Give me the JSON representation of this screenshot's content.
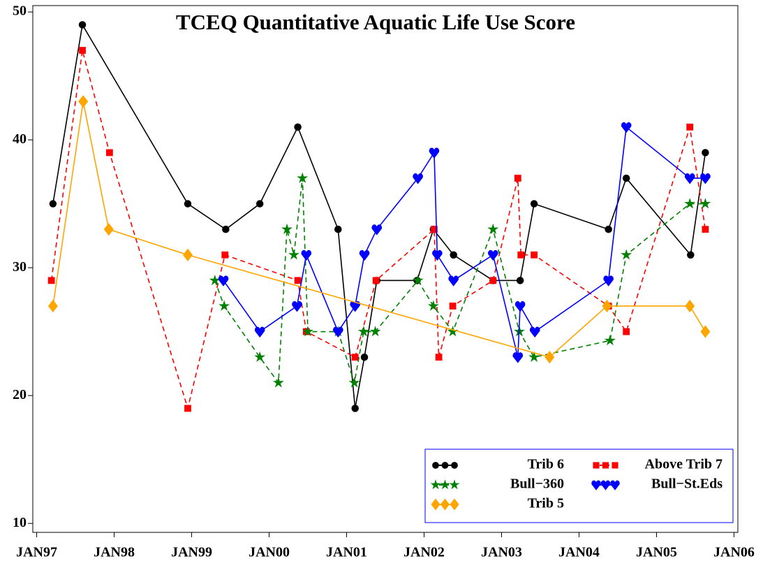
{
  "chart_data": {
    "type": "line",
    "title": "TCEQ Quantitative Aquatic Life Use Score",
    "xlim": [
      1996.95,
      2006.05
    ],
    "xticks": [
      {
        "value": 1997,
        "label": "JAN97"
      },
      {
        "value": 1998,
        "label": "JAN98"
      },
      {
        "value": 1999,
        "label": "JAN99"
      },
      {
        "value": 2000,
        "label": "JAN00"
      },
      {
        "value": 2001,
        "label": "JAN01"
      },
      {
        "value": 2002,
        "label": "JAN02"
      },
      {
        "value": 2003,
        "label": "JAN03"
      },
      {
        "value": 2004,
        "label": "JAN04"
      },
      {
        "value": 2005,
        "label": "JAN05"
      },
      {
        "value": 2006,
        "label": "JAN06"
      }
    ],
    "ylim": [
      9.3,
      50.5
    ],
    "yticks": [
      10,
      20,
      30,
      40,
      50
    ],
    "series": [
      {
        "name": "Trib 6",
        "color": "#000000",
        "marker": "circle",
        "dashed": false,
        "x": [
          1997.21,
          1997.59,
          1998.95,
          1999.44,
          1999.88,
          2000.37,
          2000.89,
          2001.11,
          2001.23,
          2001.39,
          2001.91,
          2002.12,
          2002.38,
          2002.89,
          2003.24,
          2003.42,
          2004.38,
          2004.61,
          2005.44,
          2005.63
        ],
        "values": [
          35,
          49,
          35,
          33,
          35,
          41,
          33,
          19,
          23,
          29,
          29,
          33,
          31,
          29,
          29,
          35,
          33,
          37,
          31,
          39
        ]
      },
      {
        "name": "Above Trib 7",
        "color": "#ff0000",
        "marker": "square",
        "dashed": true,
        "x": [
          1997.19,
          1997.59,
          1997.94,
          1998.95,
          1999.43,
          2000.37,
          2000.48,
          2001.11,
          2001.38,
          2002.13,
          2002.19,
          2002.37,
          2002.89,
          2003.21,
          2003.25,
          2003.42,
          2004.38,
          2004.61,
          2005.43,
          2005.63
        ],
        "values": [
          29,
          47,
          39,
          19,
          31,
          29,
          25,
          23,
          29,
          33,
          23,
          27,
          29,
          37,
          31,
          31,
          27,
          25,
          41,
          33
        ]
      },
      {
        "name": "Bull−360",
        "color": "#008000",
        "marker": "star",
        "dashed": true,
        "x": [
          1999.3,
          1999.42,
          1999.88,
          2000.12,
          2000.23,
          2000.32,
          2000.43,
          2000.5,
          2000.89,
          2001.1,
          2001.22,
          2001.37,
          2001.92,
          2002.12,
          2002.37,
          2002.89,
          2003.23,
          2003.42,
          2004.4,
          2004.61,
          2005.43,
          2005.63
        ],
        "values": [
          29,
          27,
          23,
          21,
          33,
          31,
          37,
          25,
          25,
          21,
          25,
          25,
          29,
          27,
          25,
          33,
          25,
          23,
          24.3,
          31,
          35,
          35
        ]
      },
      {
        "name": "Bull−St.Eds",
        "color": "#0000ff",
        "marker": "heart",
        "dashed": false,
        "x": [
          1999.41,
          1999.88,
          2000.36,
          2000.48,
          2000.89,
          2001.11,
          2001.23,
          2001.39,
          2001.92,
          2002.13,
          2002.17,
          2002.38,
          2002.89,
          2003.21,
          2003.24,
          2003.43,
          2004.38,
          2004.61,
          2005.43,
          2005.63
        ],
        "values": [
          29,
          25,
          27,
          31,
          25,
          27,
          31,
          33,
          37,
          39,
          31,
          29,
          31,
          23,
          27,
          25,
          29,
          41,
          37,
          37
        ]
      },
      {
        "name": "Trib 5",
        "color": "#ffa500",
        "marker": "diamond",
        "dashed": false,
        "x": [
          1997.21,
          1997.6,
          1997.93,
          1998.95,
          2003.62,
          2004.36,
          2005.43,
          2005.63
        ],
        "values": [
          27,
          43,
          33,
          31,
          23,
          27,
          27,
          25
        ]
      }
    ]
  }
}
